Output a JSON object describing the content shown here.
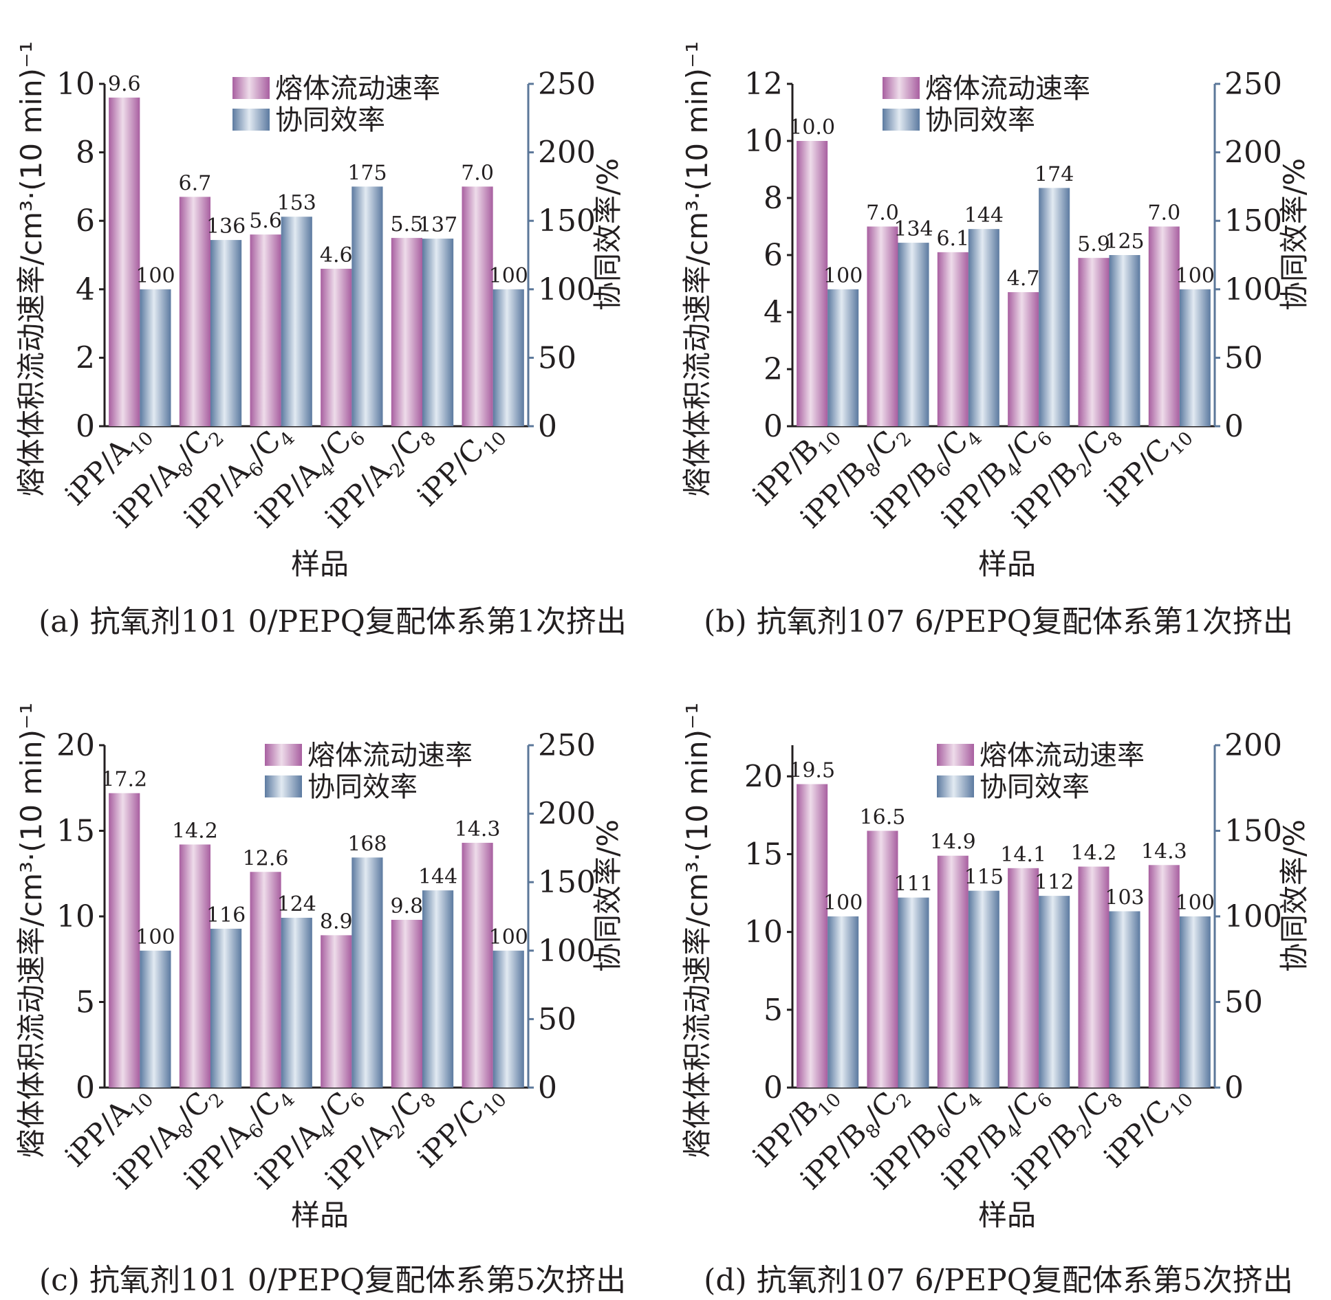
{
  "legend": {
    "mfr": "熔体流动速率",
    "synergy": "协同效率"
  },
  "colors": {
    "mfr_bar": "#a85fa0",
    "synergy_bar": "#5c7aa0",
    "right_axis": "#5b7799"
  },
  "chart_data": [
    {
      "type": "bar",
      "caption": "(a) 抗氧剂101 0/PEPQ复配体系第1次挤出",
      "xlabel": "样品",
      "ylabel_left": "熔体体积流动速率/cm³·(10 min)⁻¹",
      "ylabel_right": "协同效率/%",
      "categories": [
        {
          "main": "iPP/A",
          "sub1": "10",
          "mid": "",
          "sub2": ""
        },
        {
          "main": "iPP/A",
          "sub1": "8",
          "mid": "/C",
          "sub2": "2"
        },
        {
          "main": "iPP/A",
          "sub1": "6",
          "mid": "/C",
          "sub2": "4"
        },
        {
          "main": "iPP/A",
          "sub1": "4",
          "mid": "/C",
          "sub2": "6"
        },
        {
          "main": "iPP/A",
          "sub1": "2",
          "mid": "/C",
          "sub2": "8"
        },
        {
          "main": "iPP/C",
          "sub1": "10",
          "mid": "",
          "sub2": ""
        }
      ],
      "series": [
        {
          "name": "熔体流动速率",
          "axis": "left",
          "values": [
            9.6,
            6.7,
            5.6,
            4.6,
            5.5,
            7.0
          ],
          "labels": [
            "9.6",
            "6.7",
            "5.6",
            "4.6",
            "5.5",
            "7.0"
          ]
        },
        {
          "name": "协同效率",
          "axis": "right",
          "values": [
            100,
            136,
            153,
            175,
            137,
            100
          ],
          "labels": [
            "100",
            "136",
            "153",
            "175",
            "137",
            "100"
          ]
        }
      ],
      "ylim_left": [
        0,
        10
      ],
      "yticks_left": [
        "0",
        "2",
        "4",
        "6",
        "8",
        "10"
      ],
      "ylim_right": [
        0,
        250
      ],
      "yticks_right": [
        "0",
        "50",
        "100",
        "150",
        "200",
        "250"
      ],
      "legend_position": "top-center"
    },
    {
      "type": "bar",
      "caption": "(b) 抗氧剂107 6/PEPQ复配体系第1次挤出",
      "xlabel": "样品",
      "ylabel_left": "熔体体积流动速率/cm³·(10 min)⁻¹",
      "ylabel_right": "协同效率/%",
      "categories": [
        {
          "main": "iPP/B",
          "sub1": "10",
          "mid": "",
          "sub2": ""
        },
        {
          "main": "iPP/B",
          "sub1": "8",
          "mid": "/C",
          "sub2": "2"
        },
        {
          "main": "iPP/B",
          "sub1": "6",
          "mid": "/C",
          "sub2": "4"
        },
        {
          "main": "iPP/B",
          "sub1": "4",
          "mid": "/C",
          "sub2": "6"
        },
        {
          "main": "iPP/B",
          "sub1": "2",
          "mid": "/C",
          "sub2": "8"
        },
        {
          "main": "iPP/C",
          "sub1": "10",
          "mid": "",
          "sub2": ""
        }
      ],
      "series": [
        {
          "name": "熔体流动速率",
          "axis": "left",
          "values": [
            10.0,
            7.0,
            6.1,
            4.7,
            5.9,
            7.0
          ],
          "labels": [
            "10.0",
            "7.0",
            "6.1",
            "4.7",
            "5.9",
            "7.0"
          ]
        },
        {
          "name": "协同效率",
          "axis": "right",
          "values": [
            100,
            134,
            144,
            174,
            125,
            100
          ],
          "labels": [
            "100",
            "134",
            "144",
            "174",
            "125",
            "100"
          ]
        }
      ],
      "ylim_left": [
        0,
        12
      ],
      "yticks_left": [
        "0",
        "2",
        "4",
        "6",
        "8",
        "10",
        "12"
      ],
      "ylim_right": [
        0,
        250
      ],
      "yticks_right": [
        "0",
        "50",
        "100",
        "150",
        "200",
        "250"
      ],
      "legend_position": "top-center"
    },
    {
      "type": "bar",
      "caption": "(c) 抗氧剂101 0/PEPQ复配体系第5次挤出",
      "xlabel": "样品",
      "ylabel_left": "熔体体积流动速率/cm³·(10 min)⁻¹",
      "ylabel_right": "协同效率/%",
      "categories": [
        {
          "main": "iPP/A",
          "sub1": "10",
          "mid": "",
          "sub2": ""
        },
        {
          "main": "iPP/A",
          "sub1": "8",
          "mid": "/C",
          "sub2": "2"
        },
        {
          "main": "iPP/A",
          "sub1": "6",
          "mid": "/C",
          "sub2": "4"
        },
        {
          "main": "iPP/A",
          "sub1": "4",
          "mid": "/C",
          "sub2": "6"
        },
        {
          "main": "iPP/A",
          "sub1": "2",
          "mid": "/C",
          "sub2": "8"
        },
        {
          "main": "iPP/C",
          "sub1": "10",
          "mid": "",
          "sub2": ""
        }
      ],
      "series": [
        {
          "name": "熔体流动速率",
          "axis": "left",
          "values": [
            17.2,
            14.2,
            12.6,
            8.9,
            9.8,
            14.3
          ],
          "labels": [
            "17.2",
            "14.2",
            "12.6",
            "8.9",
            "9.8",
            "14.3"
          ]
        },
        {
          "name": "协同效率",
          "axis": "right",
          "values": [
            100,
            116,
            124,
            168,
            144,
            100
          ],
          "labels": [
            "100",
            "116",
            "124",
            "168",
            "144",
            "100"
          ]
        }
      ],
      "ylim_left": [
        0,
        20
      ],
      "yticks_left": [
        "0",
        "5",
        "10",
        "15",
        "20"
      ],
      "ylim_right": [
        0,
        250
      ],
      "yticks_right": [
        "0",
        "50",
        "100",
        "150",
        "200",
        "250"
      ],
      "legend_position": "top-right"
    },
    {
      "type": "bar",
      "caption": "(d) 抗氧剂107 6/PEPQ复配体系第5次挤出",
      "xlabel": "样品",
      "ylabel_left": "熔体体积流动速率/cm³·(10 min)⁻¹",
      "ylabel_right": "协同效率/%",
      "categories": [
        {
          "main": "iPP/B",
          "sub1": "10",
          "mid": "",
          "sub2": ""
        },
        {
          "main": "iPP/B",
          "sub1": "8",
          "mid": "/C",
          "sub2": "2"
        },
        {
          "main": "iPP/B",
          "sub1": "6",
          "mid": "/C",
          "sub2": "4"
        },
        {
          "main": "iPP/B",
          "sub1": "4",
          "mid": "/C",
          "sub2": "6"
        },
        {
          "main": "iPP/B",
          "sub1": "2",
          "mid": "/C",
          "sub2": "8"
        },
        {
          "main": "iPP/C",
          "sub1": "10",
          "mid": "",
          "sub2": ""
        }
      ],
      "series": [
        {
          "name": "熔体流动速率",
          "axis": "left",
          "values": [
            19.5,
            16.5,
            14.9,
            14.1,
            14.2,
            14.3
          ],
          "labels": [
            "19.5",
            "16.5",
            "14.9",
            "14.1",
            "14.2",
            "14.3"
          ]
        },
        {
          "name": "协同效率",
          "axis": "right",
          "values": [
            100,
            111,
            115,
            112,
            103,
            100
          ],
          "labels": [
            "100",
            "111",
            "115",
            "112",
            "103",
            "100"
          ]
        }
      ],
      "ylim_left": [
        0,
        22
      ],
      "yticks_left": [
        "0",
        "5",
        "10",
        "15",
        "20"
      ],
      "ylim_right": [
        0,
        200
      ],
      "yticks_right": [
        "0",
        "50",
        "100",
        "150",
        "200"
      ],
      "legend_position": "top-right"
    }
  ]
}
